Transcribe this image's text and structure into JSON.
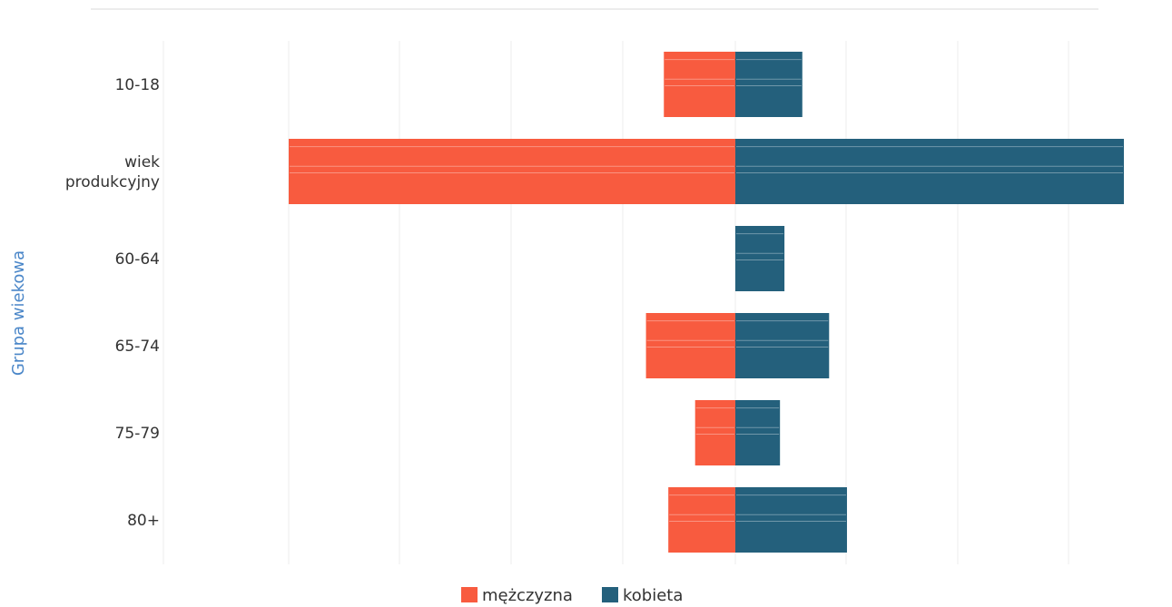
{
  "chart_data": {
    "type": "bar",
    "orientation": "horizontal",
    "stacking": "diverging",
    "title": "",
    "ylabel": "Grupa wiekowa",
    "categories": [
      [
        "10-18"
      ],
      [
        "wiek",
        "produkcyjny"
      ],
      [
        "60-64"
      ],
      [
        "65-74"
      ],
      [
        "75-79"
      ],
      [
        "80+"
      ]
    ],
    "series": [
      {
        "name": "mężczyzna",
        "values": [
          -16,
          -100,
          0,
          -20,
          -9,
          -15
        ]
      },
      {
        "name": "kobieta",
        "values": [
          15,
          87,
          11,
          21,
          10,
          25
        ]
      }
    ],
    "xlim": [
      -100,
      87
    ],
    "grid": true,
    "legend_position": "bottom",
    "colors": {
      "mezczyzna": "#f85b3f",
      "kobieta": "#24607c",
      "axis_title": "#4a86c8",
      "grid": "#ececec"
    }
  }
}
